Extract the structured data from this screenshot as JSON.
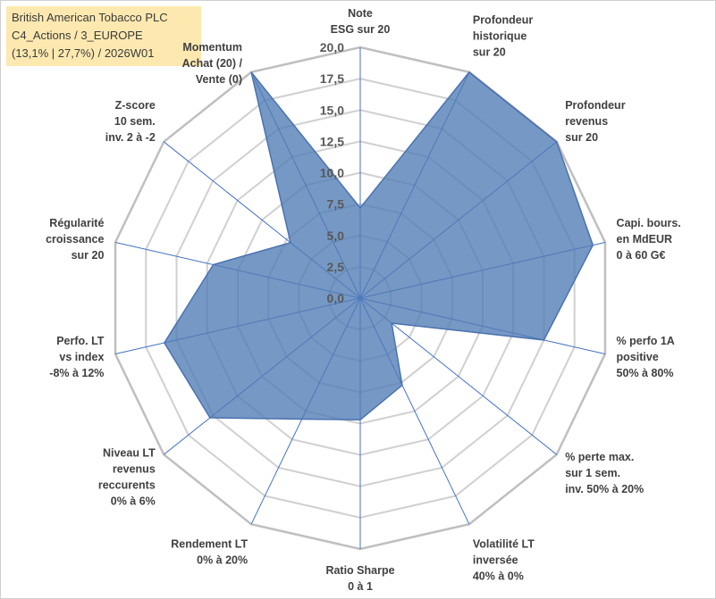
{
  "chart_data": {
    "type": "radar",
    "title": [
      "British American Tobacco PLC",
      "C4_Actions / 3_EUROPE",
      "(13,1% | 27,7%) / 2026W01"
    ],
    "rmax": 20,
    "ticks": [
      "0,0",
      "2,5",
      "5,0",
      "7,5",
      "10,0",
      "12,5",
      "15,0",
      "17,5",
      "20,0"
    ],
    "grid": true,
    "series": [
      {
        "name": "British American Tobacco PLC",
        "color": "#4f7bb5",
        "axes": [
          {
            "label": [
              "Note",
              "ESG sur 20"
            ],
            "value": 7.2
          },
          {
            "label": [
              "Profondeur",
              "historique",
              "sur 20"
            ],
            "value": 20
          },
          {
            "label": [
              "Profondeur",
              "revenus",
              "sur 20"
            ],
            "value": 20
          },
          {
            "label": [
              "Capi. bours.",
              "en MdEUR",
              "0 à 60 G€"
            ],
            "value": 19
          },
          {
            "label": [
              "% perfo 1A",
              "positive",
              "50% à 80%"
            ],
            "value": 15
          },
          {
            "label": [
              "% perte max.",
              "sur 1 sem.",
              "inv. 50% à 20%"
            ],
            "value": 3.2
          },
          {
            "label": [
              "Volatilité LT",
              "inversée",
              "40% à 0%"
            ],
            "value": 7.7
          },
          {
            "label": [
              "Ratio Sharpe",
              "0 à 1"
            ],
            "value": 9.7
          },
          {
            "label": [
              "Rendement LT",
              "0% à 20%"
            ],
            "value": 10.7
          },
          {
            "label": [
              "Niveau LT",
              "revenus",
              "reccurents",
              "0% à 6%"
            ],
            "value": 15.3
          },
          {
            "label": [
              "Perfo. LT",
              "vs index",
              "-8% à 12%"
            ],
            "value": 16
          },
          {
            "label": [
              "Régularité",
              "croissance",
              "sur 20"
            ],
            "value": 12
          },
          {
            "label": [
              "Z-score",
              "10 sem.",
              "inv. 2 à -2"
            ],
            "value": 7.1
          },
          {
            "label": [
              "Momentum",
              "Achat (20) /",
              "Vente (0)"
            ],
            "value": 20
          }
        ]
      }
    ]
  }
}
